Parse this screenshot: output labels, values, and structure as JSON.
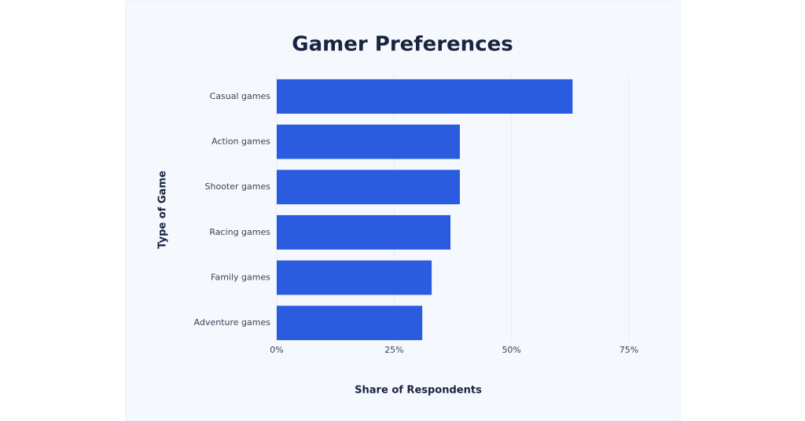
{
  "chart_data": {
    "type": "bar",
    "orientation": "horizontal",
    "title": "Gamer Preferences",
    "x_label": "Share of Respondents",
    "y_label": "Type of Game",
    "categories": [
      "Casual games",
      "Action games",
      "Shooter games",
      "Racing games",
      "Family games",
      "Adventure games"
    ],
    "values": [
      63,
      39,
      39,
      37,
      33,
      31
    ],
    "color": "#2b5ce0",
    "xlim": [
      0,
      75
    ],
    "xticks": [
      {
        "value": 0,
        "label": "0%"
      },
      {
        "value": 25,
        "label": "25%"
      },
      {
        "value": 50,
        "label": "50%"
      },
      {
        "value": 75,
        "label": "75%"
      }
    ],
    "grid": true
  }
}
